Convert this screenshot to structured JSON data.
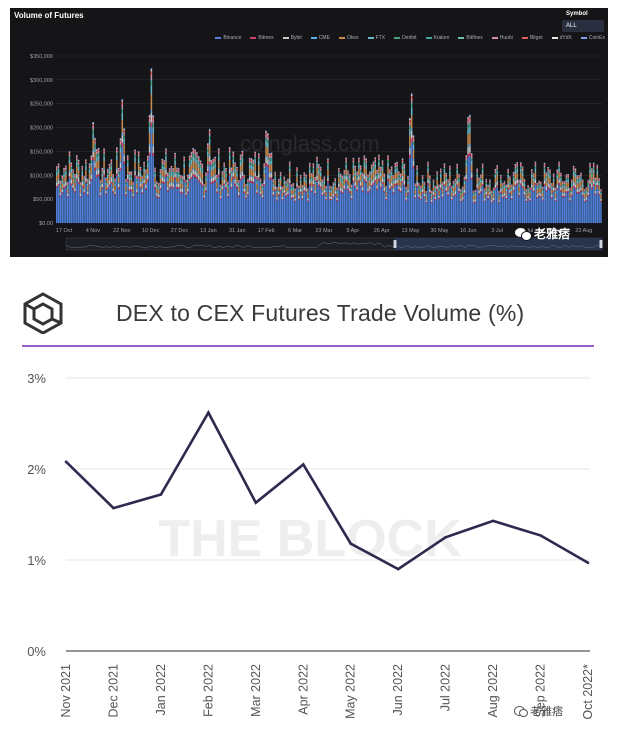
{
  "top_chart": {
    "title": "Volume of Futures",
    "symbol_label": "Symbol",
    "symbol_value": "ALL",
    "watermark": "coinglass.com",
    "wechat_text": "老雅痞",
    "legend": [
      {
        "label": "Binance",
        "color": "#4f7fd6"
      },
      {
        "label": "Bitmex",
        "color": "#d0406a"
      },
      {
        "label": "Bybit",
        "color": "#c9c9c9"
      },
      {
        "label": "CME",
        "color": "#5fb0e8"
      },
      {
        "label": "Okex",
        "color": "#c78a4e"
      },
      {
        "label": "FTX",
        "color": "#6ab7c9"
      },
      {
        "label": "Deribit",
        "color": "#4aa07a"
      },
      {
        "label": "Kraken",
        "color": "#3fa6a0"
      },
      {
        "label": "Bitfinex",
        "color": "#6fc2a8"
      },
      {
        "label": "Huobi",
        "color": "#d98aa8"
      },
      {
        "label": "Bitget",
        "color": "#e06060"
      },
      {
        "label": "dYdX",
        "color": "#e8e8e8"
      },
      {
        "label": "CoinEx",
        "color": "#7aa6e8"
      }
    ],
    "chart_data": {
      "type": "bar",
      "stacked": true,
      "title": "Volume of Futures",
      "y_tick_labels": [
        "$0.00",
        "$50,000",
        "$100,000",
        "$150,000",
        "$200,000",
        "$250,000",
        "$300,000",
        "$350,000"
      ],
      "ylim": [
        0,
        350000
      ],
      "x_tick_labels": [
        "17 Oct",
        "4 Nov",
        "22 Nov",
        "10 Dec",
        "27 Dec",
        "13 Jan",
        "31 Jan",
        "17 Feb",
        "6 Mar",
        "23 Mar",
        "9 Apr",
        "26 Apr",
        "13 May",
        "30 May",
        "16 Jun",
        "3 Jul",
        "20 Jul",
        "6 Aug",
        "23 Aug"
      ],
      "spike_days": [
        {
          "x": "4 Nov",
          "total": 230000
        },
        {
          "x": "22 Nov",
          "total": 270000
        },
        {
          "x": "10 Dec",
          "total": 325000
        },
        {
          "x": "13 Jan",
          "total": 215000
        },
        {
          "x": "17 Feb",
          "total": 225000
        },
        {
          "x": "13 May",
          "total": 290000
        },
        {
          "x": "16 Jun",
          "total": 265000
        }
      ],
      "typical_total_range": [
        80000,
        160000
      ],
      "grid": true
    }
  },
  "bottom_chart": {
    "title": "DEX to CEX Futures Trade Volume (%)",
    "watermark": "THE BLOCK",
    "wechat_text": "老雅痞",
    "line_color": "#2e2a4f",
    "chart_data": {
      "type": "line",
      "title": "DEX to CEX Futures Trade Volume (%)",
      "categories": [
        "Nov 2021",
        "Dec 2021",
        "Jan 2022",
        "Feb 2022",
        "Mar 2022",
        "Apr 2022",
        "May 2022",
        "Jun 2022",
        "Jul 2022",
        "Aug 2022",
        "Sep 2022",
        "Oct 2022*"
      ],
      "series": [
        {
          "values": [
            2.08,
            1.57,
            1.72,
            2.62,
            1.63,
            2.05,
            1.18,
            0.9,
            1.25,
            1.43,
            1.27,
            0.97
          ]
        }
      ],
      "y_tick_labels": [
        "0%",
        "1%",
        "2%",
        "3%"
      ],
      "ylim": [
        0,
        3
      ],
      "grid": true
    }
  }
}
